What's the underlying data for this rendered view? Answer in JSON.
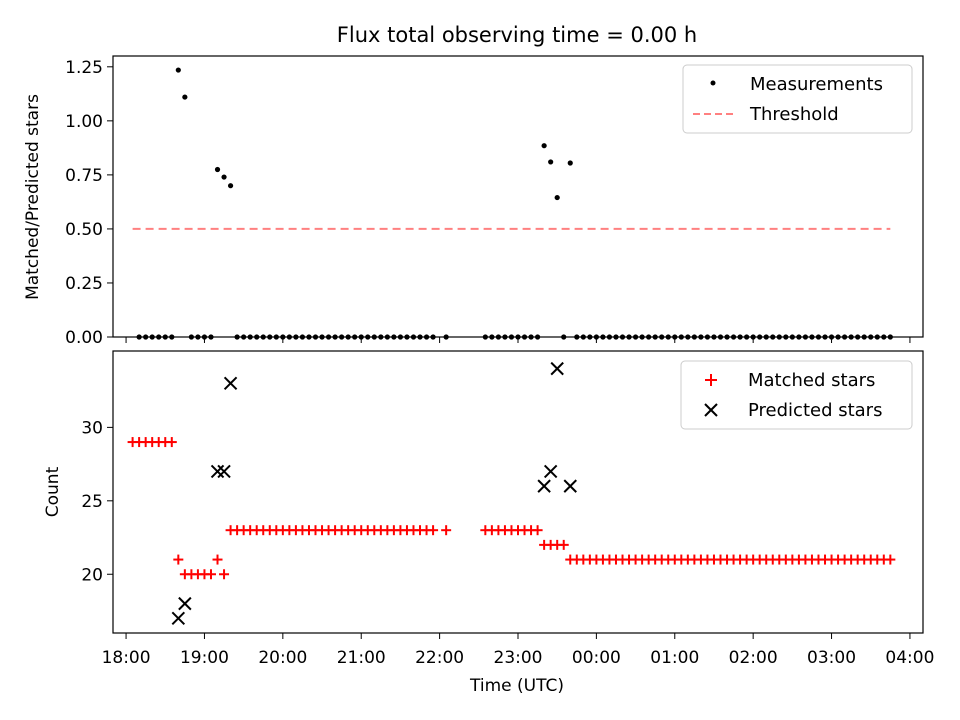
{
  "chart_data": [
    {
      "type": "scatter",
      "title": "Flux total observing time = 0.00 h",
      "xlabel": "",
      "ylabel": "Matched/Predicted stars",
      "ylim": [
        0.0,
        1.3
      ],
      "yticks": [
        0.0,
        0.25,
        0.5,
        0.75,
        1.0,
        1.25
      ],
      "ytick_labels": [
        "0.00",
        "0.25",
        "0.50",
        "0.75",
        "1.00",
        "1.25"
      ],
      "legend_placement": "top-right",
      "series": [
        {
          "name": "Measurements",
          "marker": "dot",
          "color": "#000000",
          "points": [
            [
              "18:10",
              0
            ],
            [
              "18:15",
              0
            ],
            [
              "18:20",
              0
            ],
            [
              "18:25",
              0
            ],
            [
              "18:30",
              0
            ],
            [
              "18:35",
              0
            ],
            [
              "18:40",
              1.235
            ],
            [
              "18:45",
              1.11
            ],
            [
              "18:50",
              0
            ],
            [
              "18:55",
              0
            ],
            [
              "19:00",
              0
            ],
            [
              "19:05",
              0
            ],
            [
              "19:10",
              0.775
            ],
            [
              "19:15",
              0.74
            ],
            [
              "19:20",
              0.7
            ],
            [
              "19:25",
              0
            ],
            [
              "19:30",
              0
            ],
            [
              "19:35",
              0
            ],
            [
              "19:40",
              0
            ],
            [
              "19:45",
              0
            ],
            [
              "19:50",
              0
            ],
            [
              "19:55",
              0
            ],
            [
              "20:00",
              0
            ],
            [
              "20:05",
              0
            ],
            [
              "20:10",
              0
            ],
            [
              "20:15",
              0
            ],
            [
              "20:20",
              0
            ],
            [
              "20:25",
              0
            ],
            [
              "20:30",
              0
            ],
            [
              "20:35",
              0
            ],
            [
              "20:40",
              0
            ],
            [
              "20:45",
              0
            ],
            [
              "20:50",
              0
            ],
            [
              "20:55",
              0
            ],
            [
              "21:00",
              0
            ],
            [
              "21:05",
              0
            ],
            [
              "21:10",
              0
            ],
            [
              "21:15",
              0
            ],
            [
              "21:20",
              0
            ],
            [
              "21:25",
              0
            ],
            [
              "21:30",
              0
            ],
            [
              "21:35",
              0
            ],
            [
              "21:40",
              0
            ],
            [
              "21:45",
              0
            ],
            [
              "21:50",
              0
            ],
            [
              "21:55",
              0
            ],
            [
              "22:05",
              0
            ],
            [
              "22:35",
              0
            ],
            [
              "22:40",
              0
            ],
            [
              "22:45",
              0
            ],
            [
              "22:50",
              0
            ],
            [
              "22:55",
              0
            ],
            [
              "23:00",
              0
            ],
            [
              "23:05",
              0
            ],
            [
              "23:10",
              0
            ],
            [
              "23:15",
              0
            ],
            [
              "23:20",
              0.885
            ],
            [
              "23:25",
              0.81
            ],
            [
              "23:30",
              0.645
            ],
            [
              "23:35",
              0
            ],
            [
              "23:40",
              0.805
            ],
            [
              "23:45",
              0
            ],
            [
              "23:50",
              0
            ],
            [
              "23:55",
              0
            ],
            [
              "00:00",
              0
            ],
            [
              "00:05",
              0
            ],
            [
              "00:10",
              0
            ],
            [
              "00:15",
              0
            ],
            [
              "00:20",
              0
            ],
            [
              "00:25",
              0
            ],
            [
              "00:30",
              0
            ],
            [
              "00:35",
              0
            ],
            [
              "00:40",
              0
            ],
            [
              "00:45",
              0
            ],
            [
              "00:50",
              0
            ],
            [
              "00:55",
              0
            ],
            [
              "01:00",
              0
            ],
            [
              "01:05",
              0
            ],
            [
              "01:10",
              0
            ],
            [
              "01:15",
              0
            ],
            [
              "01:20",
              0
            ],
            [
              "01:25",
              0
            ],
            [
              "01:30",
              0
            ],
            [
              "01:35",
              0
            ],
            [
              "01:40",
              0
            ],
            [
              "01:45",
              0
            ],
            [
              "01:50",
              0
            ],
            [
              "01:55",
              0
            ],
            [
              "02:00",
              0
            ],
            [
              "02:05",
              0
            ],
            [
              "02:10",
              0
            ],
            [
              "02:15",
              0
            ],
            [
              "02:20",
              0
            ],
            [
              "02:25",
              0
            ],
            [
              "02:30",
              0
            ],
            [
              "02:35",
              0
            ],
            [
              "02:40",
              0
            ],
            [
              "02:45",
              0
            ],
            [
              "02:50",
              0
            ],
            [
              "02:55",
              0
            ],
            [
              "03:00",
              0
            ],
            [
              "03:05",
              0
            ],
            [
              "03:10",
              0
            ],
            [
              "03:15",
              0
            ],
            [
              "03:20",
              0
            ],
            [
              "03:25",
              0
            ],
            [
              "03:30",
              0
            ],
            [
              "03:35",
              0
            ],
            [
              "03:40",
              0
            ],
            [
              "03:45",
              0
            ]
          ]
        },
        {
          "name": "Threshold",
          "marker": "dashed-line",
          "color": "#ff8080",
          "points": [
            [
              "18:05",
              0.5
            ],
            [
              "03:45",
              0.5
            ]
          ]
        }
      ]
    },
    {
      "type": "scatter",
      "title": "",
      "xlabel": "Time (UTC)",
      "ylabel": "Count",
      "ylim": [
        16.0,
        35.2
      ],
      "yticks": [
        20,
        25,
        30
      ],
      "ytick_labels": [
        "20",
        "25",
        "30"
      ],
      "legend_placement": "top-right",
      "series": [
        {
          "name": "Matched stars",
          "marker": "plus",
          "color": "#ff0000",
          "points": [
            [
              "18:05",
              29
            ],
            [
              "18:10",
              29
            ],
            [
              "18:15",
              29
            ],
            [
              "18:20",
              29
            ],
            [
              "18:25",
              29
            ],
            [
              "18:30",
              29
            ],
            [
              "18:35",
              29
            ],
            [
              "18:40",
              21
            ],
            [
              "18:45",
              20
            ],
            [
              "18:50",
              20
            ],
            [
              "18:55",
              20
            ],
            [
              "19:00",
              20
            ],
            [
              "19:05",
              20
            ],
            [
              "19:10",
              21
            ],
            [
              "19:15",
              20
            ],
            [
              "19:20",
              23
            ],
            [
              "19:25",
              23
            ],
            [
              "19:30",
              23
            ],
            [
              "19:35",
              23
            ],
            [
              "19:40",
              23
            ],
            [
              "19:45",
              23
            ],
            [
              "19:50",
              23
            ],
            [
              "19:55",
              23
            ],
            [
              "20:00",
              23
            ],
            [
              "20:05",
              23
            ],
            [
              "20:10",
              23
            ],
            [
              "20:15",
              23
            ],
            [
              "20:20",
              23
            ],
            [
              "20:25",
              23
            ],
            [
              "20:30",
              23
            ],
            [
              "20:35",
              23
            ],
            [
              "20:40",
              23
            ],
            [
              "20:45",
              23
            ],
            [
              "20:50",
              23
            ],
            [
              "20:55",
              23
            ],
            [
              "21:00",
              23
            ],
            [
              "21:05",
              23
            ],
            [
              "21:10",
              23
            ],
            [
              "21:15",
              23
            ],
            [
              "21:20",
              23
            ],
            [
              "21:25",
              23
            ],
            [
              "21:30",
              23
            ],
            [
              "21:35",
              23
            ],
            [
              "21:40",
              23
            ],
            [
              "21:45",
              23
            ],
            [
              "21:50",
              23
            ],
            [
              "21:55",
              23
            ],
            [
              "22:05",
              23
            ],
            [
              "22:35",
              23
            ],
            [
              "22:40",
              23
            ],
            [
              "22:45",
              23
            ],
            [
              "22:50",
              23
            ],
            [
              "22:55",
              23
            ],
            [
              "23:00",
              23
            ],
            [
              "23:05",
              23
            ],
            [
              "23:10",
              23
            ],
            [
              "23:15",
              23
            ],
            [
              "23:20",
              22
            ],
            [
              "23:25",
              22
            ],
            [
              "23:30",
              22
            ],
            [
              "23:35",
              22
            ],
            [
              "23:40",
              21
            ],
            [
              "23:45",
              21
            ],
            [
              "23:50",
              21
            ],
            [
              "23:55",
              21
            ],
            [
              "00:00",
              21
            ],
            [
              "00:05",
              21
            ],
            [
              "00:10",
              21
            ],
            [
              "00:15",
              21
            ],
            [
              "00:20",
              21
            ],
            [
              "00:25",
              21
            ],
            [
              "00:30",
              21
            ],
            [
              "00:35",
              21
            ],
            [
              "00:40",
              21
            ],
            [
              "00:45",
              21
            ],
            [
              "00:50",
              21
            ],
            [
              "00:55",
              21
            ],
            [
              "01:00",
              21
            ],
            [
              "01:05",
              21
            ],
            [
              "01:10",
              21
            ],
            [
              "01:15",
              21
            ],
            [
              "01:20",
              21
            ],
            [
              "01:25",
              21
            ],
            [
              "01:30",
              21
            ],
            [
              "01:35",
              21
            ],
            [
              "01:40",
              21
            ],
            [
              "01:45",
              21
            ],
            [
              "01:50",
              21
            ],
            [
              "01:55",
              21
            ],
            [
              "02:00",
              21
            ],
            [
              "02:05",
              21
            ],
            [
              "02:10",
              21
            ],
            [
              "02:15",
              21
            ],
            [
              "02:20",
              21
            ],
            [
              "02:25",
              21
            ],
            [
              "02:30",
              21
            ],
            [
              "02:35",
              21
            ],
            [
              "02:40",
              21
            ],
            [
              "02:45",
              21
            ],
            [
              "02:50",
              21
            ],
            [
              "02:55",
              21
            ],
            [
              "03:00",
              21
            ],
            [
              "03:05",
              21
            ],
            [
              "03:10",
              21
            ],
            [
              "03:15",
              21
            ],
            [
              "03:20",
              21
            ],
            [
              "03:25",
              21
            ],
            [
              "03:30",
              21
            ],
            [
              "03:35",
              21
            ],
            [
              "03:40",
              21
            ],
            [
              "03:45",
              21
            ]
          ]
        },
        {
          "name": "Predicted stars",
          "marker": "x",
          "color": "#000000",
          "points": [
            [
              "18:40",
              17
            ],
            [
              "18:45",
              18
            ],
            [
              "19:10",
              27
            ],
            [
              "19:15",
              27
            ],
            [
              "19:20",
              33
            ],
            [
              "23:20",
              26
            ],
            [
              "23:25",
              27
            ],
            [
              "23:30",
              34
            ],
            [
              "23:40",
              26
            ]
          ]
        }
      ]
    }
  ],
  "x_axis": {
    "start_time": "18:00",
    "end_time": "04:00",
    "xlim": [
      "17:50",
      "04:10"
    ],
    "tick_labels": [
      "18:00",
      "19:00",
      "20:00",
      "21:00",
      "22:00",
      "23:00",
      "00:00",
      "01:00",
      "02:00",
      "03:00",
      "04:00"
    ]
  }
}
